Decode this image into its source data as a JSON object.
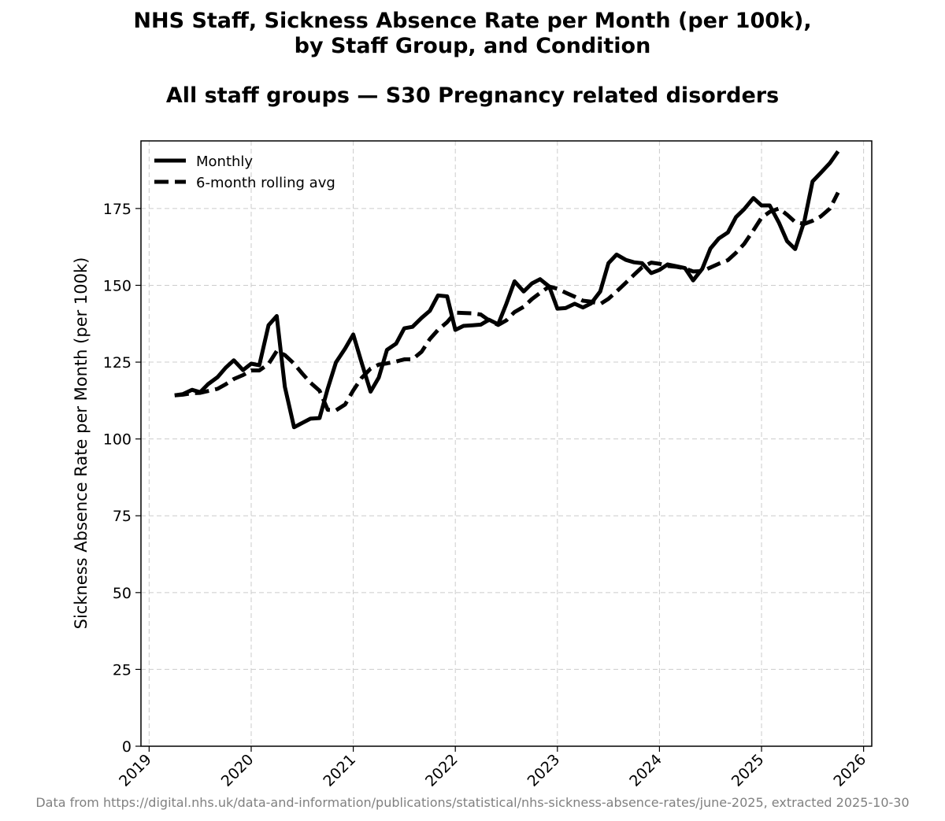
{
  "header": {
    "title_line1": "NHS Staff, Sickness Absence Rate per Month (per 100k),",
    "title_line2": "by Staff Group, and Condition",
    "subtitle": "All staff groups — S30 Pregnancy related disorders"
  },
  "footer": {
    "source": "Data from https://digital.nhs.uk/data-and-information/publications/statistical/nhs-sickness-absence-rates/june-2025, extracted 2025-10-30"
  },
  "colors": {
    "line": "#000000",
    "grid": "#cccccc",
    "source_text": "#808080"
  },
  "chart_data": {
    "type": "line",
    "title": "NHS Staff, Sickness Absence Rate per Month (per 100k), by Staff Group, and Condition",
    "subtitle": "All staff groups — S30 Pregnancy related disorders",
    "xlabel": "",
    "ylabel": "Sickness Absence Rate per Month (per 100k)",
    "xlim": [
      2018.92,
      2026.08
    ],
    "ylim": [
      0,
      197
    ],
    "x_ticks": [
      2019,
      2020,
      2021,
      2022,
      2023,
      2024,
      2025,
      2026
    ],
    "x_tick_labels": [
      "2019",
      "2020",
      "2021",
      "2022",
      "2023",
      "2024",
      "2025",
      "2026"
    ],
    "y_ticks": [
      0,
      25,
      50,
      75,
      100,
      125,
      150,
      175
    ],
    "y_tick_labels": [
      "0",
      "25",
      "50",
      "75",
      "100",
      "125",
      "150",
      "175"
    ],
    "grid": true,
    "legend_position": "top-left",
    "series": [
      {
        "name": "Monthly",
        "style": "solid",
        "points": [
          [
            2019.25,
            114.2
          ],
          [
            2019.33,
            114.6
          ],
          [
            2019.42,
            116.0
          ],
          [
            2019.5,
            115.2
          ],
          [
            2019.58,
            117.9
          ],
          [
            2019.67,
            120.1
          ],
          [
            2019.75,
            123.2
          ],
          [
            2019.83,
            125.6
          ],
          [
            2019.92,
            122.4
          ],
          [
            2020.0,
            124.5
          ],
          [
            2020.08,
            124.0
          ],
          [
            2020.17,
            137.0
          ],
          [
            2020.25,
            140.0
          ],
          [
            2020.33,
            117.0
          ],
          [
            2020.42,
            103.8
          ],
          [
            2020.5,
            105.2
          ],
          [
            2020.58,
            106.6
          ],
          [
            2020.67,
            106.8
          ],
          [
            2020.75,
            116.4
          ],
          [
            2020.83,
            124.9
          ],
          [
            2020.92,
            129.4
          ],
          [
            2021.0,
            134.0
          ],
          [
            2021.08,
            125.0
          ],
          [
            2021.17,
            115.4
          ],
          [
            2021.25,
            120.0
          ],
          [
            2021.33,
            129.0
          ],
          [
            2021.42,
            131.0
          ],
          [
            2021.5,
            136.0
          ],
          [
            2021.58,
            136.5
          ],
          [
            2021.67,
            139.4
          ],
          [
            2021.75,
            141.7
          ],
          [
            2021.83,
            146.7
          ],
          [
            2021.92,
            146.4
          ],
          [
            2022.0,
            135.5
          ],
          [
            2022.08,
            136.8
          ],
          [
            2022.17,
            137.0
          ],
          [
            2022.25,
            137.2
          ],
          [
            2022.33,
            138.8
          ],
          [
            2022.42,
            137.3
          ],
          [
            2022.5,
            144.0
          ],
          [
            2022.58,
            151.3
          ],
          [
            2022.67,
            148.0
          ],
          [
            2022.75,
            150.6
          ],
          [
            2022.83,
            152.0
          ],
          [
            2022.92,
            149.6
          ],
          [
            2023.0,
            142.4
          ],
          [
            2023.08,
            142.6
          ],
          [
            2023.17,
            144.0
          ],
          [
            2023.25,
            142.8
          ],
          [
            2023.33,
            144.1
          ],
          [
            2023.42,
            148.0
          ],
          [
            2023.5,
            157.2
          ],
          [
            2023.58,
            160.0
          ],
          [
            2023.67,
            158.3
          ],
          [
            2023.75,
            157.5
          ],
          [
            2023.83,
            157.2
          ],
          [
            2023.92,
            154.0
          ],
          [
            2024.0,
            155.0
          ],
          [
            2024.08,
            156.8
          ],
          [
            2024.17,
            156.2
          ],
          [
            2024.25,
            155.6
          ],
          [
            2024.33,
            151.6
          ],
          [
            2024.42,
            155.4
          ],
          [
            2024.5,
            162.0
          ],
          [
            2024.58,
            165.2
          ],
          [
            2024.67,
            167.2
          ],
          [
            2024.75,
            172.2
          ],
          [
            2024.83,
            174.8
          ],
          [
            2024.92,
            178.4
          ],
          [
            2025.0,
            176.0
          ],
          [
            2025.08,
            176.0
          ],
          [
            2025.17,
            170.4
          ],
          [
            2025.25,
            164.4
          ],
          [
            2025.33,
            161.8
          ],
          [
            2025.42,
            171.0
          ],
          [
            2025.5,
            183.8
          ],
          [
            2025.58,
            186.6
          ],
          [
            2025.67,
            189.8
          ],
          [
            2025.75,
            193.6
          ]
        ]
      },
      {
        "name": "6-month rolling avg",
        "style": "dashed",
        "points": [
          [
            2019.25,
            114.2
          ],
          [
            2019.33,
            114.4
          ],
          [
            2019.42,
            114.9
          ],
          [
            2019.5,
            115.0
          ],
          [
            2019.58,
            115.6
          ],
          [
            2019.67,
            116.3
          ],
          [
            2019.75,
            117.8
          ],
          [
            2019.83,
            119.5
          ],
          [
            2019.92,
            120.8
          ],
          [
            2020.0,
            122.3
          ],
          [
            2020.08,
            122.3
          ],
          [
            2020.17,
            124.4
          ],
          [
            2020.25,
            128.6
          ],
          [
            2020.33,
            127.3
          ],
          [
            2020.42,
            124.5
          ],
          [
            2020.5,
            121.3
          ],
          [
            2020.58,
            118.3
          ],
          [
            2020.67,
            115.7
          ],
          [
            2020.75,
            109.5
          ],
          [
            2020.83,
            109.3
          ],
          [
            2020.92,
            111.2
          ],
          [
            2021.0,
            115.8
          ],
          [
            2021.08,
            119.8
          ],
          [
            2021.17,
            122.9
          ],
          [
            2021.25,
            124.2
          ],
          [
            2021.33,
            124.6
          ],
          [
            2021.42,
            125.2
          ],
          [
            2021.5,
            125.9
          ],
          [
            2021.58,
            125.9
          ],
          [
            2021.67,
            128.4
          ],
          [
            2021.75,
            132.5
          ],
          [
            2021.83,
            135.5
          ],
          [
            2021.92,
            138.0
          ],
          [
            2022.0,
            141.1
          ],
          [
            2022.08,
            141.0
          ],
          [
            2022.17,
            140.9
          ],
          [
            2022.25,
            140.5
          ],
          [
            2022.33,
            138.6
          ],
          [
            2022.42,
            137.1
          ],
          [
            2022.5,
            138.6
          ],
          [
            2022.58,
            141.3
          ],
          [
            2022.67,
            143.0
          ],
          [
            2022.75,
            145.5
          ],
          [
            2022.83,
            147.5
          ],
          [
            2022.92,
            149.6
          ],
          [
            2023.0,
            148.9
          ],
          [
            2023.08,
            147.6
          ],
          [
            2023.17,
            146.3
          ],
          [
            2023.25,
            145.0
          ],
          [
            2023.33,
            144.7
          ],
          [
            2023.42,
            143.9
          ],
          [
            2023.5,
            145.6
          ],
          [
            2023.58,
            148.0
          ],
          [
            2023.67,
            150.8
          ],
          [
            2023.75,
            153.4
          ],
          [
            2023.83,
            155.9
          ],
          [
            2023.92,
            157.4
          ],
          [
            2024.0,
            157.0
          ],
          [
            2024.08,
            156.3
          ],
          [
            2024.17,
            156.0
          ],
          [
            2024.25,
            155.5
          ],
          [
            2024.33,
            154.5
          ],
          [
            2024.42,
            154.6
          ],
          [
            2024.5,
            155.8
          ],
          [
            2024.58,
            157.0
          ],
          [
            2024.67,
            158.2
          ],
          [
            2024.75,
            160.6
          ],
          [
            2024.83,
            163.5
          ],
          [
            2024.92,
            167.9
          ],
          [
            2025.0,
            172.0
          ],
          [
            2025.08,
            173.9
          ],
          [
            2025.17,
            175.0
          ],
          [
            2025.25,
            173.0
          ],
          [
            2025.33,
            170.6
          ],
          [
            2025.42,
            170.0
          ],
          [
            2025.5,
            171.0
          ],
          [
            2025.58,
            172.4
          ],
          [
            2025.67,
            175.0
          ],
          [
            2025.75,
            180.2
          ]
        ]
      }
    ]
  }
}
